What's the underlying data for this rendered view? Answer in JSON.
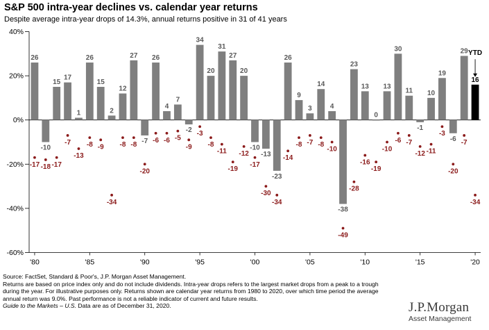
{
  "chart_data": {
    "type": "bar",
    "title": "S&P 500 intra-year declines vs. calendar year returns",
    "subtitle": "Despite average intra-year drops of 14.3%, annual returns positive in 31 of 41 years",
    "years": [
      1980,
      1981,
      1982,
      1983,
      1984,
      1985,
      1986,
      1987,
      1988,
      1989,
      1990,
      1991,
      1992,
      1993,
      1994,
      1995,
      1996,
      1997,
      1998,
      1999,
      2000,
      2001,
      2002,
      2003,
      2004,
      2005,
      2006,
      2007,
      2008,
      2009,
      2010,
      2011,
      2012,
      2013,
      2014,
      2015,
      2016,
      2017,
      2018,
      2019,
      2020
    ],
    "series": [
      {
        "values": [
          26,
          -10,
          15,
          17,
          1,
          26,
          15,
          2,
          12,
          27,
          -7,
          26,
          4,
          7,
          -2,
          34,
          20,
          31,
          27,
          20,
          -10,
          -13,
          -23,
          26,
          9,
          3,
          14,
          4,
          -38,
          23,
          13,
          0,
          13,
          30,
          11,
          -1,
          10,
          19,
          -6,
          29,
          16
        ]
      },
      {
        "values": [
          -17,
          -18,
          -17,
          -7,
          -13,
          -8,
          -9,
          -34,
          -8,
          -8,
          -20,
          -6,
          -6,
          -5,
          -9,
          -3,
          -8,
          -11,
          -19,
          -12,
          -17,
          -30,
          -34,
          -14,
          -8,
          -7,
          -8,
          -10,
          -49,
          -28,
          -16,
          -19,
          -10,
          -6,
          -7,
          -12,
          -11,
          -3,
          -20,
          -7,
          -34
        ]
      }
    ],
    "ytd_label": "YTD",
    "xticks": [
      "'80",
      "'85",
      "'90",
      "'95",
      "'00",
      "'05",
      "'10",
      "'15",
      "'20"
    ],
    "yticks": [
      "40%",
      "20%",
      "0%",
      "-20%",
      "-40%",
      "-60%"
    ],
    "ylim": [
      -60,
      40
    ],
    "colors": {
      "bar": "#7f7f7f",
      "ytd_bar": "#000000",
      "decline": "#8b1a1a",
      "bar_label": "#595959"
    }
  },
  "footnotes": [
    "Source: FactSet, Standard & Poor's, J.P. Morgan Asset Management.",
    "Returns are based on price index only and do not include dividends. Intra-year drops refers to the largest market drops from a peak to a trough",
    "during the year. For illustrative purposes only. Returns shown are calendar year returns from 1980 to 2020, over which time period the average",
    "annual return was 9.0%. Past performance is not a reliable indicator of current and future results."
  ],
  "guide_prefix": "Guide to the Markets – U.S.",
  "guide_suffix": " Data are as of December 31, 2020.",
  "logo": {
    "name": "J.P.Morgan",
    "sub": "Asset Management"
  }
}
